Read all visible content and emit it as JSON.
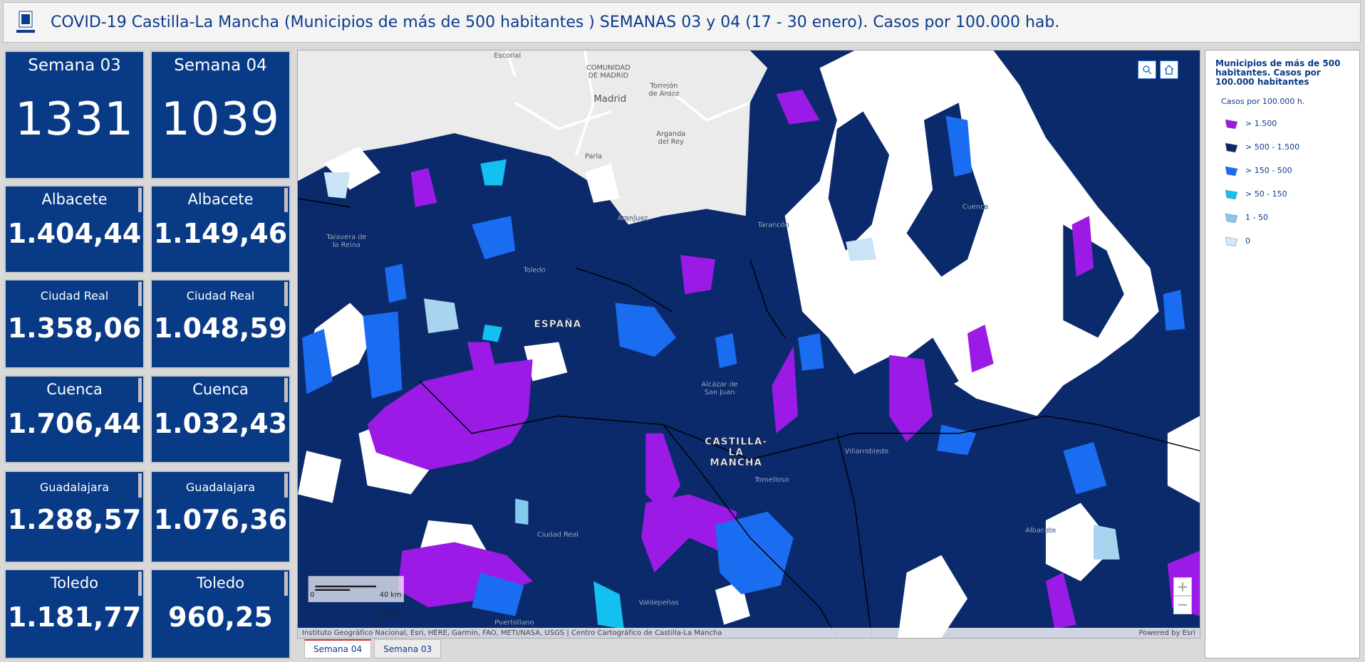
{
  "header": {
    "title": "COVID-19 Castilla-La Mancha (Municipios de más de 500 habitantes ) SEMANAS 03 y 04 (17 - 30 enero). Casos por 100.000 hab."
  },
  "indicators": [
    [
      {
        "title": "Semana 03",
        "value": "1331"
      },
      {
        "title": "Albacete",
        "value": "1.404,44"
      },
      {
        "title": "Ciudad Real",
        "value": "1.358,06"
      },
      {
        "title": "Cuenca",
        "value": "1.706,44"
      },
      {
        "title": "Guadalajara",
        "value": "1.288,57"
      },
      {
        "title": "Toledo",
        "value": "1.181,77"
      }
    ],
    [
      {
        "title": "Semana 04",
        "value": "1039"
      },
      {
        "title": "Albacete",
        "value": "1.149,46"
      },
      {
        "title": "Ciudad Real",
        "value": "1.048,59"
      },
      {
        "title": "Cuenca",
        "value": "1.032,43"
      },
      {
        "title": "Guadalajara",
        "value": "1.076,36"
      },
      {
        "title": "Toledo",
        "value": "960,25"
      }
    ]
  ],
  "map": {
    "labels": [
      [
        "Escorial"
      ],
      [
        "COMUNIDAD",
        "DE MADRID"
      ],
      [
        "Madrid"
      ],
      [
        "Torrejón",
        "de Ardoz"
      ],
      [
        "Arganda",
        "del Rey"
      ],
      [
        "Parla"
      ],
      [
        "Aranjuez"
      ],
      [
        "Talavera de",
        "la Reina"
      ],
      [
        "Toledo"
      ],
      [
        "ESPAÑA"
      ],
      [
        "Tarancón"
      ],
      [
        "Cuenca"
      ],
      [
        "Alcázar de",
        "San Juan"
      ],
      [
        "CASTILLA-",
        "LA",
        "MANCHA"
      ],
      [
        "Tomelloso"
      ],
      [
        "Villarrobledo"
      ],
      [
        "Ciudad Real"
      ],
      [
        "Valdepeñas"
      ],
      [
        "Albacete"
      ],
      [
        "Puertollano"
      ]
    ],
    "scale": [
      "0",
      "40 km",
      "20 mi"
    ],
    "attribution": "Instituto Geográfico Nacional, Esri, HERE, Garmin, FAO, METI/NASA, USGS | Centro Cartográfico de Castilla-La Mancha",
    "powered": "Powered by Esri"
  },
  "tabs": [
    "Semana 04",
    "Semana 03"
  ],
  "legend": {
    "title": "Municipios de más de 500 habitantes. Casos por 100.000 habitantes",
    "subtitle": "Casos por 100.000 h.",
    "items": [
      {
        "label": "> 1.500",
        "color": "#9b1ae6"
      },
      {
        "label": "> 500 - 1.500",
        "color": "#0b2a6c"
      },
      {
        "label": "> 150 - 500",
        "color": "#1a6cf0"
      },
      {
        "label": "> 50 - 150",
        "color": "#14c0f0"
      },
      {
        "label": "1 - 50",
        "color": "#84c9f0"
      },
      {
        "label": "0",
        "color": "#d3e8f9"
      }
    ]
  }
}
